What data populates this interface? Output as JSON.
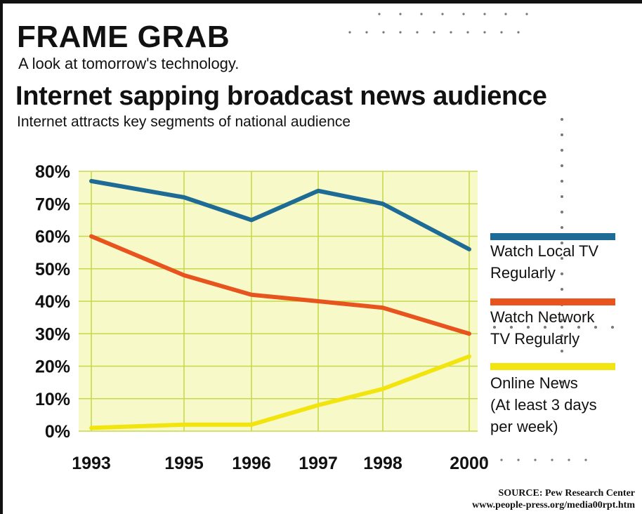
{
  "header": {
    "banner": "FRAME GRAB",
    "tagline": "A look at tomorrow's technology."
  },
  "source": {
    "line1": "SOURCE: Pew Research Center",
    "line2": "www.people-press.org/media00rpt.htm"
  },
  "chart_data": {
    "type": "line",
    "title": "Internet sapping broadcast news audience",
    "subtitle": "Internet attracts key segments of national audience",
    "categories": [
      "1993",
      "1995",
      "1996",
      "1997",
      "1998",
      "2000"
    ],
    "ylim": [
      0,
      80
    ],
    "yticks": [
      "0%",
      "10%",
      "20%",
      "30%",
      "40%",
      "50%",
      "60%",
      "70%",
      "80%"
    ],
    "grid": true,
    "legend_position": "right",
    "series": [
      {
        "name": "Watch Local TV Regularly",
        "label_lines": [
          "Watch Local TV",
          "Regularly"
        ],
        "color": "#1e6b95",
        "values": [
          77,
          72,
          65,
          74,
          70,
          56
        ]
      },
      {
        "name": "Watch Network TV Regularly",
        "label_lines": [
          "Watch Network",
          "TV Regularly"
        ],
        "color": "#e8541d",
        "values": [
          60,
          48,
          42,
          40,
          38,
          30
        ]
      },
      {
        "name": "Online News (At least 3 days per week)",
        "label_lines": [
          "Online News",
          "(At least 3 days",
          "per week)"
        ],
        "color": "#f2e50f",
        "values": [
          1,
          2,
          2,
          8,
          13,
          23
        ]
      }
    ],
    "colors": {
      "plot_background": "#f7f9c8",
      "grid": "#c6d94a"
    }
  }
}
